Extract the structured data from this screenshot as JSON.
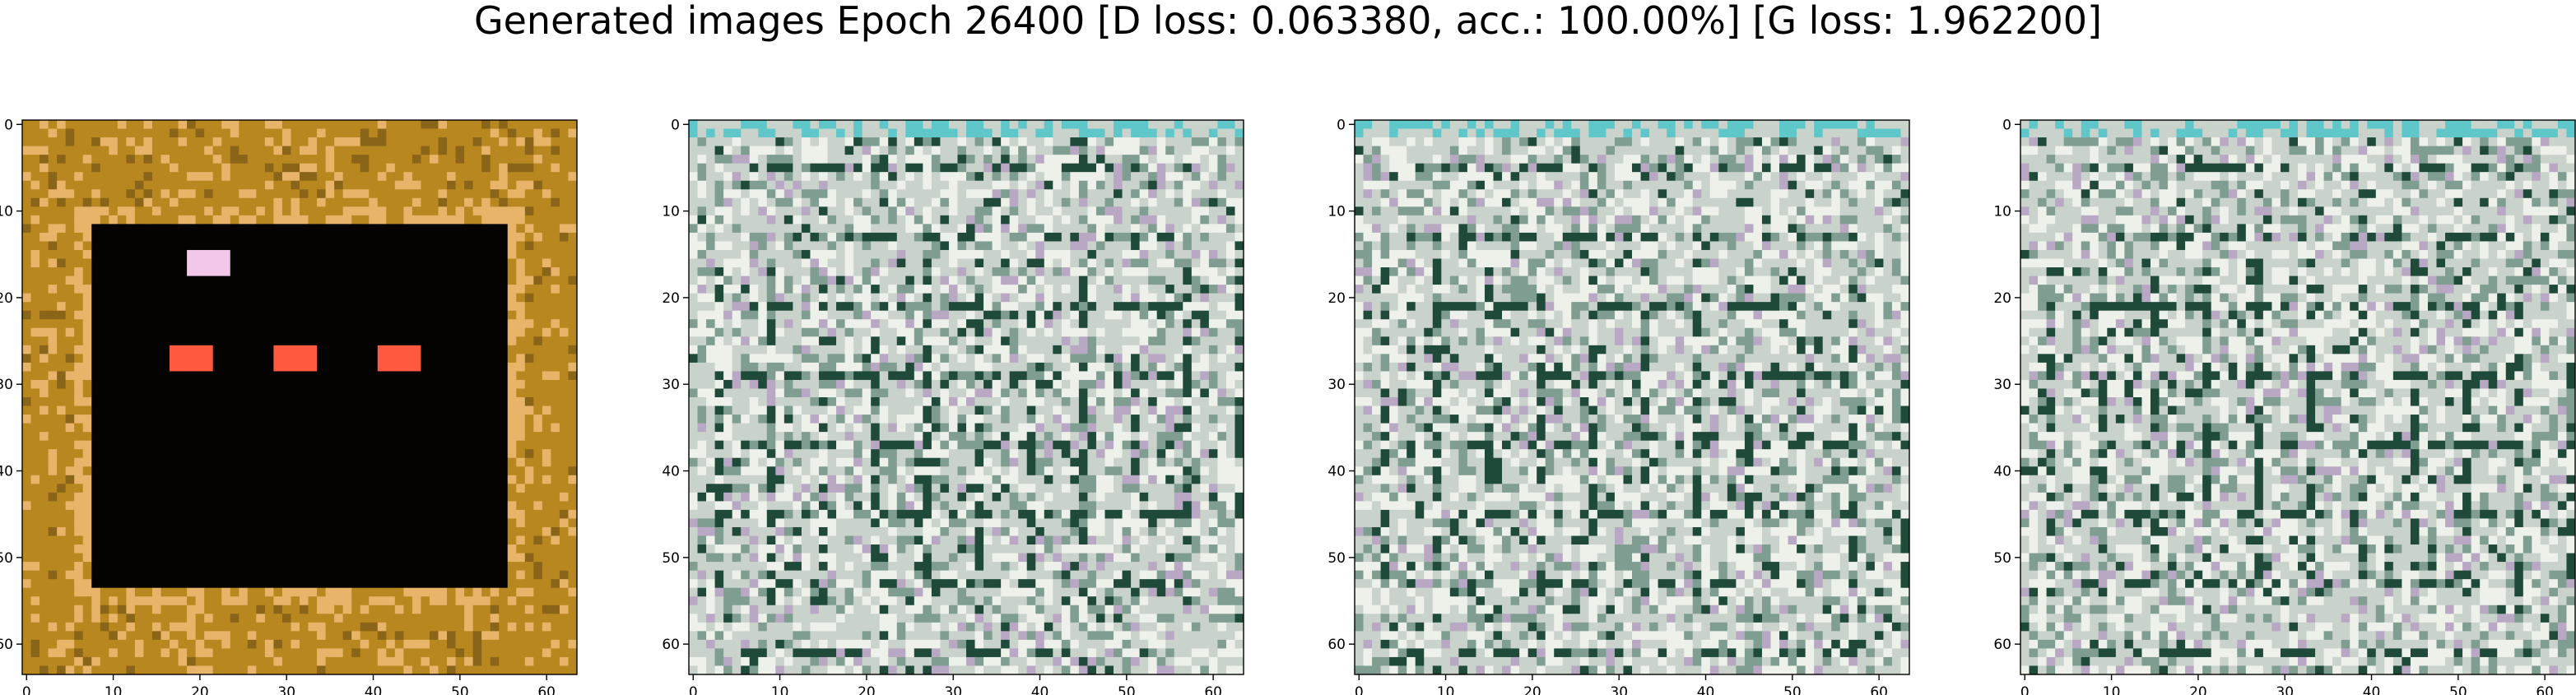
{
  "figure": {
    "title": "Generated images Epoch 26400 [D loss: 0.063380, acc.: 100.00%] [G loss: 1.962200]"
  },
  "chart_data": [
    {
      "type": "heatmap",
      "title": "",
      "xlabel": "",
      "ylabel": "",
      "xlim": [
        -0.5,
        63.5
      ],
      "ylim": [
        63.5,
        -0.5
      ],
      "xticks": [
        0,
        10,
        20,
        30,
        40,
        50,
        60
      ],
      "yticks": [
        0,
        10,
        20,
        30,
        40,
        50,
        60
      ],
      "image": "generated-image-1",
      "palette": [
        "#b8871f",
        "#050302",
        "#e7b46a",
        "#ff5a40",
        "#f2c7ea",
        "#2e8a5a"
      ]
    },
    {
      "type": "heatmap",
      "title": "",
      "xlabel": "",
      "ylabel": "",
      "xlim": [
        -0.5,
        63.5
      ],
      "ylim": [
        63.5,
        -0.5
      ],
      "xticks": [
        0,
        10,
        20,
        30,
        40,
        50,
        60
      ],
      "yticks": [
        0,
        10,
        20,
        30,
        40,
        50,
        60
      ],
      "image": "generated-image-2",
      "palette": [
        "#c9d3cb",
        "#eef0ea",
        "#7f9e91",
        "#1f4a3a",
        "#b9a8c3",
        "#5fc7c9"
      ]
    },
    {
      "type": "heatmap",
      "title": "",
      "xlabel": "",
      "ylabel": "",
      "xlim": [
        -0.5,
        63.5
      ],
      "ylim": [
        63.5,
        -0.5
      ],
      "xticks": [
        0,
        10,
        20,
        30,
        40,
        50,
        60
      ],
      "yticks": [
        0,
        10,
        20,
        30,
        40,
        50,
        60
      ],
      "image": "generated-image-3",
      "palette": [
        "#c9d3cb",
        "#eef0ea",
        "#7f9e91",
        "#1f4a3a",
        "#b9a8c3",
        "#5fc7c9"
      ]
    },
    {
      "type": "heatmap",
      "title": "",
      "xlabel": "",
      "ylabel": "",
      "xlim": [
        -0.5,
        63.5
      ],
      "ylim": [
        63.5,
        -0.5
      ],
      "xticks": [
        0,
        10,
        20,
        30,
        40,
        50,
        60
      ],
      "yticks": [
        0,
        10,
        20,
        30,
        40,
        50,
        60
      ],
      "image": "generated-image-4",
      "palette": [
        "#c9d3cb",
        "#eef0ea",
        "#7f9e91",
        "#1f4a3a",
        "#b9a8c3",
        "#5fc7c9"
      ]
    }
  ]
}
